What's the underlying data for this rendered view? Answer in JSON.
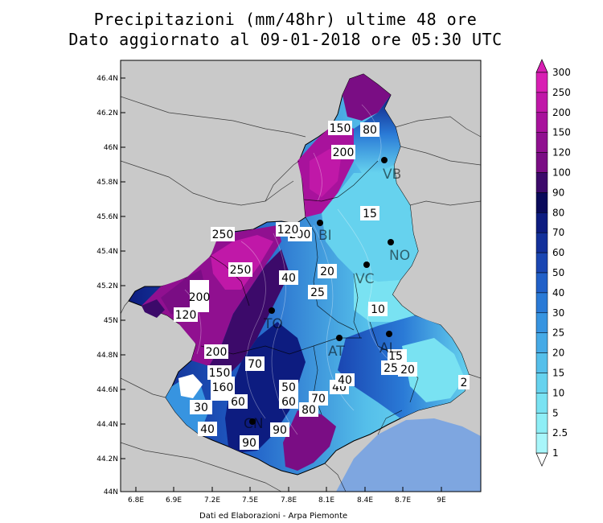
{
  "title_line1": "Precipitazioni (mm/48hr) ultime 48 ore",
  "title_line2": "Dato aggiornato al 09-01-2018 ore 05:30 UTC",
  "credit": "Dati ed Elaborazioni - Arpa Piemonte",
  "lat_ticks": [
    "46.4N",
    "46.2N",
    "46N",
    "45.8N",
    "45.6N",
    "45.4N",
    "45.2N",
    "45N",
    "44.8N",
    "44.6N",
    "44.4N",
    "44.2N",
    "44N"
  ],
  "lon_ticks": [
    "6.8E",
    "6.9E",
    "7.2E",
    "7.5E",
    "7.8E",
    "8.1E",
    "8.4E",
    "8.7E",
    "9E"
  ],
  "legend": {
    "values": [
      "300",
      "250",
      "200",
      "150",
      "120",
      "100",
      "90",
      "80",
      "70",
      "60",
      "50",
      "40",
      "30",
      "25",
      "20",
      "15",
      "10",
      "5",
      "2.5",
      "1"
    ],
    "colors": [
      "#d81fb3",
      "#c018a8",
      "#a8129c",
      "#901090",
      "#7a0d84",
      "#3c0a6a",
      "#0a0a5a",
      "#0d1c80",
      "#13309a",
      "#1a46b2",
      "#2160c8",
      "#2a7ad6",
      "#3794e0",
      "#46aae6",
      "#55bfea",
      "#66d2ee",
      "#79e2f2",
      "#8eeef6",
      "#a8f6fa",
      "#ffffff"
    ]
  },
  "stations": [
    {
      "label": "VB"
    },
    {
      "label": "NO"
    },
    {
      "label": "VC"
    },
    {
      "label": "TO"
    },
    {
      "label": "AT"
    },
    {
      "label": "AL"
    },
    {
      "label": "BI"
    },
    {
      "label": "CN"
    }
  ],
  "contour_labels": [
    "80",
    "150",
    "200",
    "15",
    "200",
    "120",
    "250",
    "20",
    "40",
    "25",
    "10",
    "250",
    "200",
    "120",
    "200",
    "70",
    "150",
    "160",
    "60",
    "30",
    "40",
    "40",
    "50",
    "60",
    "70",
    "80",
    "90",
    "90",
    "40",
    "25",
    "20",
    "15",
    "2"
  ],
  "colors": {
    "land_outside": "#c9c9c9",
    "sea": "#7ea6e0",
    "frame": "#000000"
  }
}
